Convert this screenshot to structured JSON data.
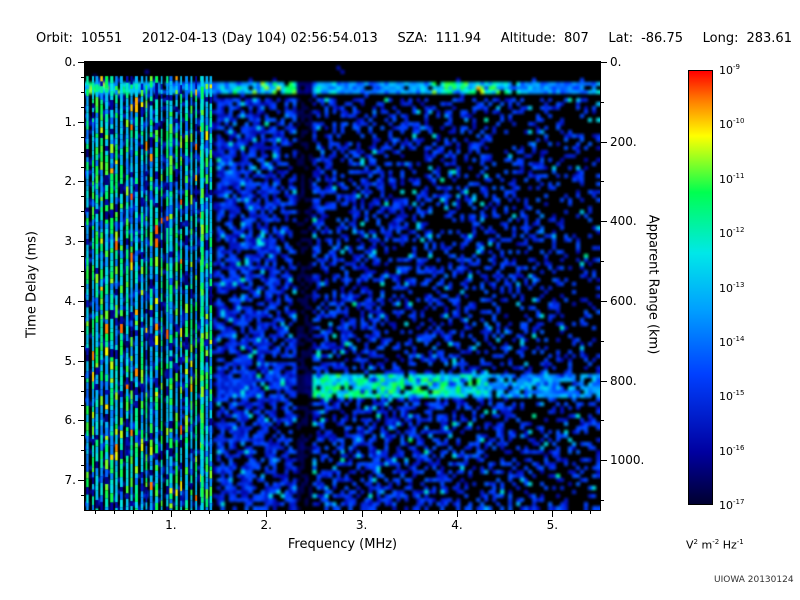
{
  "header": {
    "fields": [
      {
        "label": "Orbit:",
        "value": "10551"
      },
      {
        "label": "",
        "value": "2012-04-13 (Day 104) 02:56:54.013"
      },
      {
        "label": "SZA:",
        "value": "111.94"
      },
      {
        "label": "Altitude:",
        "value": "807"
      },
      {
        "label": "Lat:",
        "value": "-86.75"
      },
      {
        "label": "Long:",
        "value": "283.61"
      }
    ]
  },
  "chart_data": {
    "type": "heatmap",
    "title": "",
    "xlabel": "Frequency (MHz)",
    "ylabel_left": "Time Delay (ms)",
    "ylabel_right": "Apparent Range (km)",
    "xlim": [
      0.1,
      5.5
    ],
    "ylim_time_delay_ms": [
      0,
      7.5
    ],
    "ylim_apparent_range_km": [
      0,
      1125
    ],
    "km_per_ms": 150,
    "x_tick_values": [
      1,
      2,
      3,
      4,
      5
    ],
    "x_tick_labels": [
      "1.",
      "2.",
      "3.",
      "4.",
      "5."
    ],
    "x_minor_step": 0.2,
    "y_left_tick_values": [
      0,
      1,
      2,
      3,
      4,
      5,
      6,
      7
    ],
    "y_left_tick_labels": [
      "0.",
      "1.",
      "2.",
      "3.",
      "4.",
      "5.",
      "6.",
      "7."
    ],
    "y_left_minor_step": 0.25,
    "y_right_tick_values_km": [
      0,
      200,
      400,
      600,
      800,
      1000
    ],
    "y_right_tick_labels": [
      "0.",
      "200.",
      "400.",
      "600.",
      "800.",
      "1000."
    ],
    "colorbar": {
      "tick_exponents": [
        -9,
        -10,
        -11,
        -12,
        -13,
        -14,
        -15,
        -16,
        -17
      ],
      "unit_segments": [
        [
          "V",
          "2"
        ],
        [
          "m",
          "-2"
        ],
        [
          "Hz",
          "-1"
        ]
      ],
      "min": 1e-17,
      "max": 1e-09,
      "colormap": [
        {
          "pos": 0.0,
          "color": "#000030"
        },
        {
          "pos": 0.12,
          "color": "#0000a0"
        },
        {
          "pos": 0.3,
          "color": "#0040ff"
        },
        {
          "pos": 0.45,
          "color": "#00a0ff"
        },
        {
          "pos": 0.58,
          "color": "#00e8e8"
        },
        {
          "pos": 0.72,
          "color": "#00ff50"
        },
        {
          "pos": 0.85,
          "color": "#ffff00"
        },
        {
          "pos": 0.93,
          "color": "#ff8000"
        },
        {
          "pos": 1.0,
          "color": "#ff0000"
        }
      ]
    },
    "features": [
      "Intense vertical electron plasma oscillation harmonic stripes below ~1.45 MHz spanning all time delays",
      "Bright horizontal first-return band near 0.3-0.5 ms across all frequencies",
      "Second horizontal echo band near 5.2-5.6 ms, strongest between ~2.4 and 4.3 MHz",
      "Dark vertical attenuation gap near 2.35 MHz",
      "Diffuse blue noise speckle whose density decreases toward higher frequencies",
      "Nearly black region at delays below ~0.25 ms and between the first band and ~0.6 ms"
    ],
    "render_params": {
      "seed": 1337,
      "stripe_max_freq": 1.45,
      "stripe_count": 26,
      "bright_line_freq": 1.33,
      "top_band_ms": [
        0.27,
        0.52
      ],
      "top_black_ms": 0.24,
      "bottom_band_ms": [
        5.2,
        5.6
      ],
      "bottom_band_min_freq": 2.4,
      "bottom_band_strong_freq": [
        2.4,
        4.3
      ],
      "dark_column_freq": [
        2.3,
        2.45
      ]
    }
  },
  "credit": "UIOWA 20130124",
  "colors": {
    "background": "#ffffff",
    "plot_background": "#000000",
    "axis": "#000000",
    "text": "#000000"
  }
}
